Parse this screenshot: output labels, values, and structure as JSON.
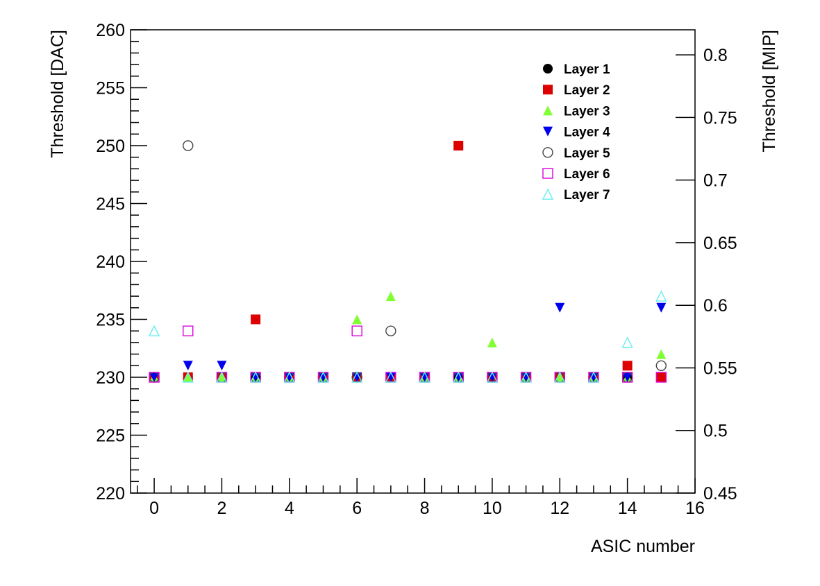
{
  "chart_data": {
    "type": "scatter",
    "xlabel": "ASIC number",
    "ylabel": "Threshold [DAC]",
    "y2label": "Threshold [MIP]",
    "xlim": [
      -0.7,
      16
    ],
    "ylim": [
      220,
      260
    ],
    "y2lim": [
      0.45,
      0.82
    ],
    "xticks": [
      0,
      2,
      4,
      6,
      8,
      10,
      12,
      14,
      16
    ],
    "yticks": [
      220,
      225,
      230,
      235,
      240,
      245,
      250,
      255,
      260
    ],
    "y2ticks": [
      0.45,
      0.5,
      0.55,
      0.6,
      0.65,
      0.7,
      0.75,
      0.8
    ],
    "grid": false,
    "legend_position": "top-right",
    "series": [
      {
        "name": "Layer 1",
        "marker": "circle-filled",
        "color": "#000000",
        "x": [
          0,
          1,
          2,
          3,
          4,
          5,
          6,
          7,
          8,
          9,
          10,
          11,
          12,
          13,
          14,
          15
        ],
        "y": [
          230,
          230,
          230,
          230,
          230,
          230,
          230,
          230,
          230,
          230,
          230,
          230,
          230,
          230,
          230,
          230
        ]
      },
      {
        "name": "Layer 2",
        "marker": "square-filled",
        "color": "#dd0000",
        "x": [
          0,
          1,
          2,
          3,
          4,
          5,
          6,
          7,
          8,
          9,
          10,
          11,
          12,
          13,
          14,
          15
        ],
        "y": [
          230,
          230,
          230,
          235,
          230,
          230,
          230,
          230,
          230,
          250,
          230,
          230,
          230,
          230,
          231,
          230
        ]
      },
      {
        "name": "Layer 3",
        "marker": "triangle-up-filled",
        "color": "#80ff33",
        "x": [
          0,
          1,
          2,
          3,
          4,
          5,
          6,
          7,
          8,
          9,
          10,
          11,
          12,
          13,
          14,
          15
        ],
        "y": [
          230,
          230,
          230,
          230,
          230,
          230,
          235,
          237,
          230,
          230,
          233,
          230,
          230,
          230,
          230,
          232
        ]
      },
      {
        "name": "Layer 4",
        "marker": "triangle-down-filled",
        "color": "#0000ee",
        "x": [
          0,
          1,
          2,
          3,
          4,
          5,
          6,
          7,
          8,
          9,
          10,
          11,
          12,
          13,
          14,
          15
        ],
        "y": [
          230,
          231,
          231,
          230,
          230,
          230,
          230,
          230,
          230,
          230,
          230,
          230,
          236,
          230,
          230,
          236
        ]
      },
      {
        "name": "Layer 5",
        "marker": "circle-open",
        "color": "#444444",
        "x": [
          0,
          1,
          2,
          3,
          4,
          5,
          6,
          7,
          8,
          9,
          10,
          11,
          12,
          13,
          14,
          15
        ],
        "y": [
          230,
          250,
          230,
          230,
          230,
          230,
          230,
          234,
          230,
          230,
          230,
          230,
          230,
          230,
          230,
          231
        ]
      },
      {
        "name": "Layer 6",
        "marker": "square-open",
        "color": "#dd00dd",
        "x": [
          0,
          1,
          2,
          3,
          4,
          5,
          6,
          7,
          8,
          9,
          10,
          11,
          12,
          13,
          14,
          15
        ],
        "y": [
          230,
          234,
          230,
          230,
          230,
          230,
          234,
          230,
          230,
          230,
          230,
          230,
          230,
          230,
          230,
          230
        ]
      },
      {
        "name": "Layer 7",
        "marker": "triangle-up-open",
        "color": "#66eeee",
        "x": [
          0,
          1,
          2,
          3,
          4,
          5,
          6,
          7,
          8,
          9,
          10,
          11,
          12,
          13,
          14,
          15
        ],
        "y": [
          234,
          230,
          230,
          230,
          230,
          230,
          230,
          230,
          230,
          230,
          230,
          230,
          230,
          230,
          233,
          237
        ]
      }
    ]
  }
}
